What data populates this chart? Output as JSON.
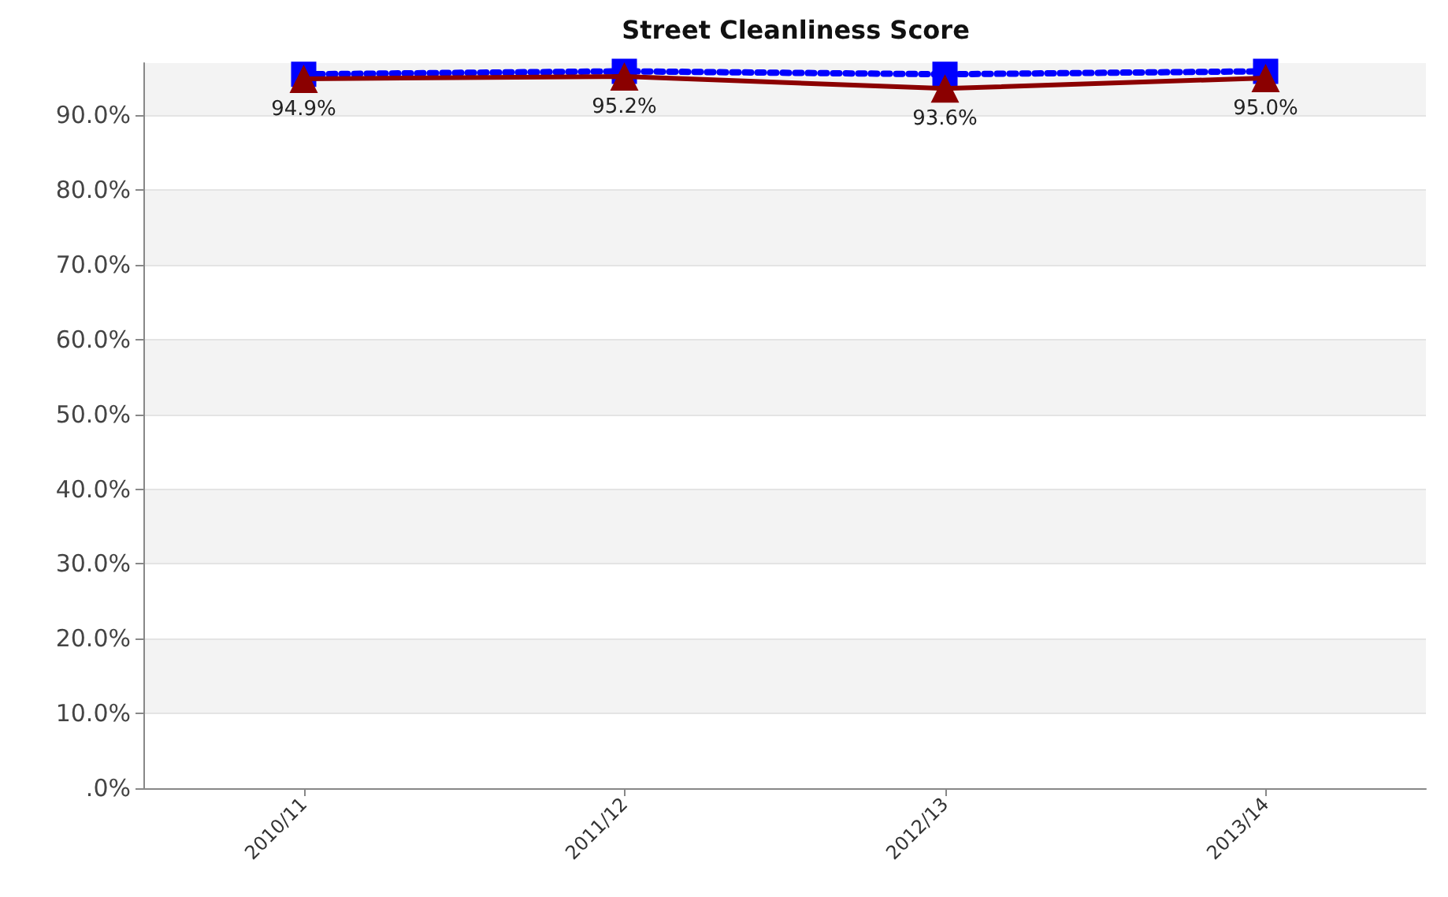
{
  "chart_data": {
    "type": "line",
    "title": "Street Cleanliness Score",
    "categories": [
      "2010/11",
      "2011/12",
      "2012/13",
      "2013/14"
    ],
    "series": [
      {
        "color": "#8b0000",
        "values": [
          94.9,
          95.2,
          93.6,
          95.0
        ],
        "value_labels": [
          "94.9%",
          "95.2%",
          "93.6%",
          "95.0%"
        ],
        "marker": "triangle",
        "line_style": "solid"
      },
      {
        "color": "#0000ff",
        "values": [
          95.5,
          95.9,
          95.5,
          95.9
        ],
        "marker": "square",
        "line_style": "dotted"
      }
    ],
    "ylim": [
      0,
      97
    ],
    "yticks": [
      {
        "value": 0,
        "label": ".0%"
      },
      {
        "value": 10,
        "label": "10.0%"
      },
      {
        "value": 20,
        "label": "20.0%"
      },
      {
        "value": 30,
        "label": "30.0%"
      },
      {
        "value": 40,
        "label": "40.0%"
      },
      {
        "value": 50,
        "label": "50.0%"
      },
      {
        "value": 60,
        "label": "60.0%"
      },
      {
        "value": 70,
        "label": "70.0%"
      },
      {
        "value": 80,
        "label": "80.0%"
      },
      {
        "value": 90,
        "label": "90.0%"
      }
    ],
    "grid": "y"
  }
}
